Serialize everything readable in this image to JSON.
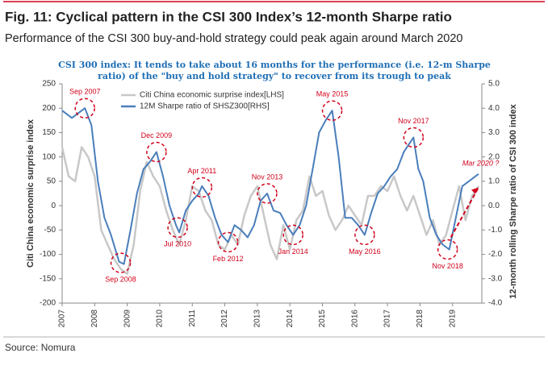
{
  "header": {
    "title": "Fig. 11: Cyclical pattern in the CSI 300 Index’s 12-month Sharpe ratio",
    "subtitle": "Performance of the CSI 300 buy-and-hold strategy could peak again around March 2020"
  },
  "chart_data": {
    "type": "line",
    "title": "CSI 300 index: It tends to take about 16 months for the performance (i.e. 12-m Sharpe ratio) of the \"buy and hold strategy\" to recover from its trough to peak",
    "ylabel": "Citi China economic surprise index",
    "y2label": "12-month rolling Sharpe ratio of CSI 300 index",
    "xlim": [
      2007,
      2019.9
    ],
    "xticks": [
      2007,
      2008,
      2009,
      2010,
      2011,
      2012,
      2013,
      2014,
      2015,
      2016,
      2017,
      2018,
      2019
    ],
    "ylim": [
      -200,
      250
    ],
    "yticks": [
      -200,
      -150,
      -100,
      -50,
      0,
      50,
      100,
      150,
      200,
      250
    ],
    "y2lim": [
      -4,
      5
    ],
    "y2ticks": [
      {
        "value": -4,
        "label": "-4.0"
      },
      {
        "value": -3,
        "label": "-3.0"
      },
      {
        "value": -2,
        "label": "-2.0"
      },
      {
        "value": -1,
        "label": "-1.0"
      },
      {
        "value": 0,
        "label": "0.0"
      },
      {
        "value": 1,
        "label": "1.0"
      },
      {
        "value": 2,
        "label": "2.0"
      },
      {
        "value": 3,
        "label": "3.0"
      },
      {
        "value": 4,
        "label": "4.0"
      },
      {
        "value": 5,
        "label": "5.0"
      }
    ],
    "series": [
      {
        "name": "Citi China economic surprise index[LHS]",
        "color": "#c8c8c8",
        "x": [
          2007.0,
          2007.2,
          2007.4,
          2007.6,
          2007.8,
          2008.0,
          2008.2,
          2008.4,
          2008.6,
          2008.8,
          2009.0,
          2009.2,
          2009.4,
          2009.6,
          2009.8,
          2010.0,
          2010.2,
          2010.4,
          2010.6,
          2010.8,
          2011.0,
          2011.2,
          2011.4,
          2011.6,
          2011.8,
          2012.0,
          2012.2,
          2012.4,
          2012.6,
          2012.8,
          2013.0,
          2013.2,
          2013.4,
          2013.6,
          2013.8,
          2014.0,
          2014.2,
          2014.4,
          2014.6,
          2014.8,
          2015.0,
          2015.2,
          2015.4,
          2015.6,
          2015.8,
          2016.0,
          2016.2,
          2016.4,
          2016.6,
          2016.8,
          2017.0,
          2017.2,
          2017.4,
          2017.6,
          2017.8,
          2018.0,
          2018.2,
          2018.4,
          2018.6,
          2018.8,
          2019.0,
          2019.2,
          2019.4,
          2019.6,
          2019.8
        ],
        "values": [
          120,
          60,
          50,
          120,
          100,
          60,
          -50,
          -80,
          -110,
          -130,
          -140,
          -80,
          30,
          90,
          60,
          40,
          -10,
          -50,
          -80,
          -30,
          40,
          30,
          -10,
          -30,
          -80,
          -90,
          -60,
          -80,
          -20,
          20,
          40,
          -20,
          -80,
          -110,
          -40,
          -90,
          -30,
          -10,
          60,
          20,
          30,
          -20,
          -50,
          -30,
          0,
          -20,
          -40,
          20,
          20,
          40,
          30,
          60,
          20,
          -10,
          20,
          -20,
          -60,
          -30,
          -80,
          -60,
          -10,
          40,
          -30,
          20,
          40
        ]
      },
      {
        "name": "12M Sharpe ratio of SHSZ300[RHS]",
        "color": "#4a7ebb",
        "axis": "y2",
        "x": [
          2007.0,
          2007.3,
          2007.7,
          2007.9,
          2008.1,
          2008.3,
          2008.5,
          2008.75,
          2008.9,
          2009.1,
          2009.3,
          2009.5,
          2009.7,
          2009.9,
          2010.1,
          2010.3,
          2010.5,
          2010.6,
          2010.8,
          2011.0,
          2011.2,
          2011.3,
          2011.5,
          2011.7,
          2011.9,
          2012.1,
          2012.3,
          2012.5,
          2012.7,
          2012.9,
          2013.1,
          2013.3,
          2013.5,
          2013.7,
          2013.9,
          2014.1,
          2014.3,
          2014.5,
          2014.7,
          2014.9,
          2015.1,
          2015.3,
          2015.5,
          2015.7,
          2015.9,
          2016.1,
          2016.3,
          2016.5,
          2016.7,
          2016.9,
          2017.1,
          2017.3,
          2017.5,
          2017.8,
          2017.95,
          2018.1,
          2018.3,
          2018.5,
          2018.7,
          2018.9,
          2019.1,
          2019.3,
          2019.5,
          2019.7,
          2019.8
        ],
        "values": [
          3.9,
          3.6,
          4.0,
          3.3,
          1.0,
          -0.5,
          -1.2,
          -2.3,
          -2.4,
          -1.0,
          0.5,
          1.5,
          1.8,
          2.2,
          1.2,
          0.0,
          -0.8,
          -1.1,
          -0.2,
          0.2,
          0.5,
          0.8,
          0.4,
          -0.5,
          -1.2,
          -1.5,
          -0.8,
          -1.0,
          -1.3,
          -0.8,
          0.2,
          0.5,
          -0.2,
          -0.3,
          -0.8,
          -1.2,
          -0.8,
          0.0,
          1.5,
          3.0,
          3.5,
          3.9,
          2.0,
          -0.5,
          -0.5,
          -0.8,
          -1.2,
          -0.3,
          0.5,
          0.8,
          1.2,
          1.5,
          2.2,
          2.8,
          1.5,
          1.0,
          -0.5,
          -1.2,
          -1.6,
          -1.8,
          -0.5,
          0.8,
          1.0,
          1.2,
          1.3
        ]
      }
    ],
    "annotations": [
      {
        "label": "Sep 2007",
        "x": 2007.7,
        "y": 4.0
      },
      {
        "label": "Sep 2008",
        "x": 2008.8,
        "y": -2.35
      },
      {
        "label": "Dec 2009",
        "x": 2009.9,
        "y": 2.2
      },
      {
        "label": "Jul 2010",
        "x": 2010.55,
        "y": -0.9
      },
      {
        "label": "Apr 2011",
        "x": 2011.3,
        "y": 0.75
      },
      {
        "label": "Feb 2012",
        "x": 2012.1,
        "y": -1.5
      },
      {
        "label": "Nov 2013",
        "x": 2013.3,
        "y": 0.5
      },
      {
        "label": "Jan 2014",
        "x": 2014.1,
        "y": -1.2
      },
      {
        "label": "May 2015",
        "x": 2015.3,
        "y": 3.9
      },
      {
        "label": "May 2016",
        "x": 2016.3,
        "y": -1.2
      },
      {
        "label": "Nov 2017",
        "x": 2017.8,
        "y": 2.8
      },
      {
        "label": "Nov 2018",
        "x": 2018.85,
        "y": -1.8
      }
    ],
    "forecast_label": "Mar 2020 ?"
  },
  "footer": {
    "source": "Source: Nomura"
  }
}
